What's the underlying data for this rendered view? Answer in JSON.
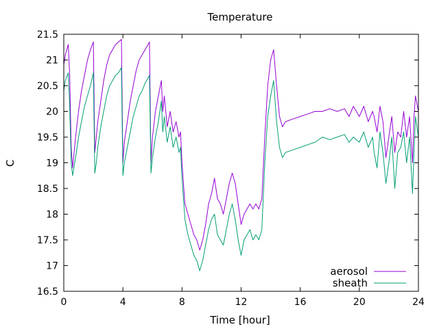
{
  "chart_data": {
    "type": "line",
    "title": "Temperature",
    "xlabel": "Time [hour]",
    "ylabel": "C",
    "xlim": [
      0,
      24
    ],
    "ylim": [
      16.5,
      21.5
    ],
    "xticks": [
      0,
      4,
      8,
      12,
      16,
      20,
      24
    ],
    "yticks": [
      16.5,
      17,
      17.5,
      18,
      18.5,
      19,
      19.5,
      20,
      20.5,
      21,
      21.5
    ],
    "grid": false,
    "legend_position": "bottom-right",
    "series": [
      {
        "name": "aerosol",
        "color": "#9400d3",
        "x": [
          0,
          0.1,
          0.3,
          0.4,
          0.5,
          0.6,
          0.8,
          1.0,
          1.2,
          1.4,
          1.6,
          1.8,
          2.0,
          2.1,
          2.2,
          2.3,
          2.5,
          2.7,
          2.9,
          3.1,
          3.3,
          3.5,
          3.7,
          3.9,
          4.0,
          4.1,
          4.3,
          4.5,
          4.7,
          4.9,
          5.1,
          5.3,
          5.5,
          5.7,
          5.8,
          5.9,
          6.0,
          6.2,
          6.4,
          6.6,
          6.7,
          6.8,
          7.0,
          7.2,
          7.4,
          7.6,
          7.8,
          7.9,
          8.0,
          8.2,
          8.4,
          8.6,
          8.8,
          9.0,
          9.2,
          9.4,
          9.6,
          9.8,
          10.0,
          10.2,
          10.4,
          10.6,
          10.8,
          11.0,
          11.2,
          11.4,
          11.6,
          11.8,
          12.0,
          12.2,
          12.4,
          12.6,
          12.8,
          13.0,
          13.2,
          13.4,
          13.6,
          13.8,
          14.0,
          14.2,
          14.4,
          14.6,
          14.8,
          15.0,
          15.5,
          16.0,
          16.5,
          17.0,
          17.5,
          18.0,
          18.5,
          19.0,
          19.3,
          19.6,
          20.0,
          20.3,
          20.6,
          20.9,
          21.0,
          21.2,
          21.4,
          21.6,
          21.8,
          22.0,
          22.2,
          22.4,
          22.6,
          22.8,
          23.0,
          23.2,
          23.4,
          23.6,
          23.7,
          23.8,
          24.0
        ],
        "y": [
          20.9,
          21.1,
          21.3,
          20.7,
          19.3,
          18.9,
          19.5,
          20.0,
          20.4,
          20.7,
          21.0,
          21.2,
          21.35,
          19.2,
          19.5,
          19.8,
          20.2,
          20.6,
          20.9,
          21.1,
          21.2,
          21.3,
          21.35,
          21.4,
          19.0,
          19.4,
          19.8,
          20.2,
          20.5,
          20.8,
          21.0,
          21.1,
          21.2,
          21.3,
          21.35,
          19.0,
          19.5,
          20.0,
          20.3,
          20.6,
          20.0,
          20.3,
          19.7,
          20.0,
          19.6,
          19.8,
          19.5,
          19.6,
          19.0,
          18.2,
          18.0,
          17.8,
          17.6,
          17.5,
          17.3,
          17.5,
          17.8,
          18.2,
          18.4,
          18.7,
          18.3,
          18.2,
          18.0,
          18.3,
          18.6,
          18.8,
          18.6,
          18.2,
          17.8,
          18.0,
          18.1,
          18.2,
          18.1,
          18.2,
          18.1,
          18.3,
          19.5,
          20.5,
          21.0,
          21.2,
          20.5,
          19.9,
          19.7,
          19.8,
          19.85,
          19.9,
          19.95,
          20.0,
          20.0,
          20.05,
          20.0,
          20.05,
          19.9,
          20.1,
          19.9,
          20.1,
          19.8,
          20.0,
          19.9,
          19.6,
          20.1,
          19.8,
          19.1,
          19.5,
          19.9,
          19.2,
          19.6,
          19.5,
          20.0,
          19.5,
          19.9,
          19.0,
          19.9,
          20.3,
          20.0
        ]
      },
      {
        "name": "sheath",
        "color": "#009e73",
        "x": [
          0,
          0.1,
          0.3,
          0.4,
          0.5,
          0.6,
          0.8,
          1.0,
          1.2,
          1.4,
          1.6,
          1.8,
          2.0,
          2.1,
          2.2,
          2.3,
          2.5,
          2.7,
          2.9,
          3.1,
          3.3,
          3.5,
          3.7,
          3.9,
          4.0,
          4.1,
          4.3,
          4.5,
          4.7,
          4.9,
          5.1,
          5.3,
          5.5,
          5.7,
          5.8,
          5.9,
          6.0,
          6.2,
          6.4,
          6.6,
          6.7,
          6.8,
          7.0,
          7.2,
          7.4,
          7.6,
          7.8,
          7.9,
          8.0,
          8.2,
          8.4,
          8.6,
          8.8,
          9.0,
          9.2,
          9.4,
          9.6,
          9.8,
          10.0,
          10.2,
          10.4,
          10.6,
          10.8,
          11.0,
          11.2,
          11.4,
          11.6,
          11.8,
          12.0,
          12.2,
          12.4,
          12.6,
          12.8,
          13.0,
          13.2,
          13.4,
          13.6,
          13.8,
          14.0,
          14.2,
          14.4,
          14.6,
          14.8,
          15.0,
          15.5,
          16.0,
          16.5,
          17.0,
          17.5,
          18.0,
          18.5,
          19.0,
          19.3,
          19.6,
          20.0,
          20.3,
          20.6,
          20.9,
          21.0,
          21.2,
          21.4,
          21.6,
          21.8,
          22.0,
          22.2,
          22.4,
          22.6,
          22.8,
          23.0,
          23.2,
          23.4,
          23.6,
          23.7,
          23.8,
          24.0
        ],
        "y": [
          20.4,
          20.6,
          20.75,
          20.1,
          19.0,
          18.75,
          19.1,
          19.5,
          19.8,
          20.1,
          20.3,
          20.5,
          20.75,
          18.8,
          19.0,
          19.3,
          19.7,
          20.0,
          20.3,
          20.5,
          20.6,
          20.7,
          20.75,
          20.85,
          18.75,
          19.0,
          19.3,
          19.6,
          19.9,
          20.1,
          20.3,
          20.4,
          20.55,
          20.65,
          20.7,
          18.8,
          19.1,
          19.5,
          19.8,
          20.2,
          19.6,
          19.9,
          19.4,
          19.7,
          19.3,
          19.5,
          19.2,
          19.3,
          18.7,
          17.9,
          17.6,
          17.4,
          17.2,
          17.1,
          16.9,
          17.1,
          17.4,
          17.7,
          17.9,
          18.0,
          17.6,
          17.5,
          17.4,
          17.7,
          18.0,
          18.2,
          17.9,
          17.5,
          17.2,
          17.5,
          17.6,
          17.7,
          17.5,
          17.6,
          17.5,
          17.7,
          19.0,
          19.9,
          20.3,
          20.6,
          19.8,
          19.3,
          19.1,
          19.2,
          19.25,
          19.3,
          19.35,
          19.4,
          19.5,
          19.45,
          19.5,
          19.55,
          19.4,
          19.5,
          19.4,
          19.6,
          19.3,
          19.5,
          19.2,
          18.9,
          19.6,
          19.2,
          18.6,
          19.0,
          19.5,
          18.5,
          19.2,
          19.3,
          19.6,
          19.0,
          19.5,
          18.4,
          19.2,
          19.9,
          19.5
        ]
      }
    ]
  }
}
